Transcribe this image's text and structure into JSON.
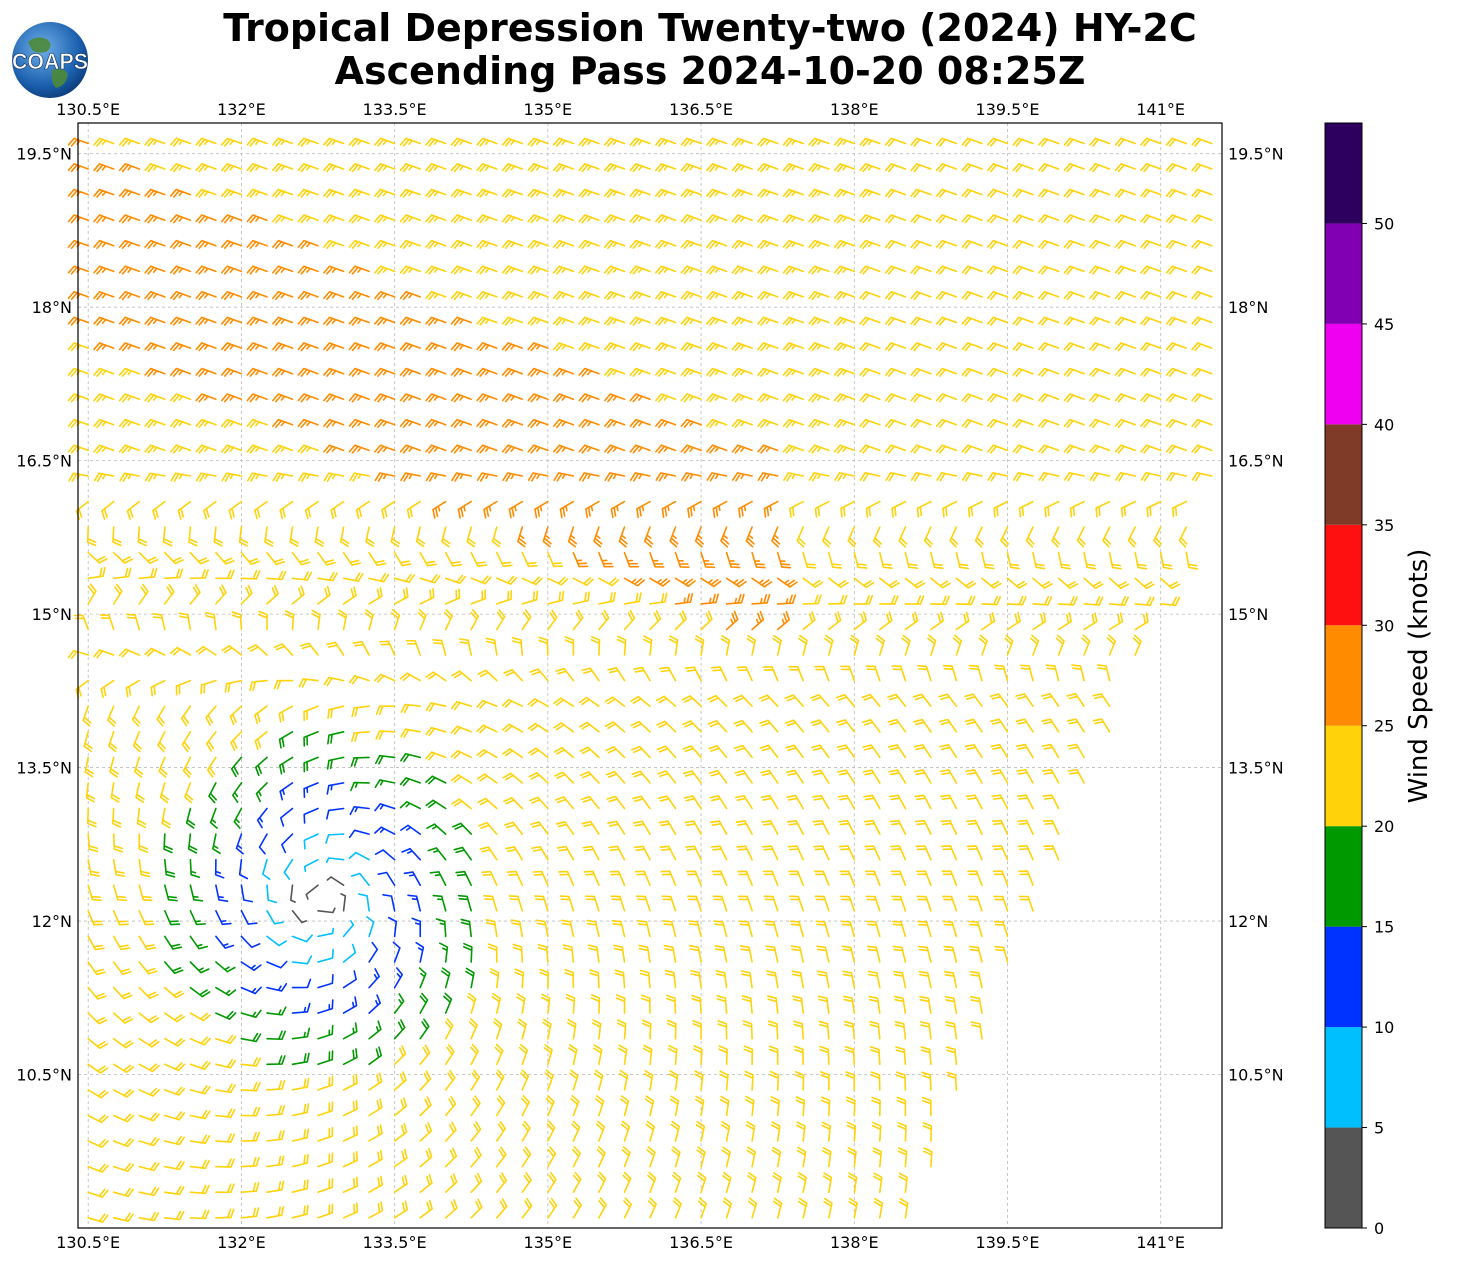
{
  "title": {
    "line1": "Tropical Depression Twenty-two (2024) HY-2C",
    "line2": "Ascending Pass 2024-10-20 08:25Z"
  },
  "logo": {
    "text": "COAPS",
    "icon": "globe-icon"
  },
  "map": {
    "lon_range": [
      130.4,
      141.6
    ],
    "lat_range": [
      9.0,
      19.8
    ],
    "lon_ticks": [
      "130.5°E",
      "132°E",
      "133.5°E",
      "135°E",
      "136.5°E",
      "138°E",
      "139.5°E",
      "141°E"
    ],
    "lat_ticks": [
      "10.5°N",
      "12°N",
      "13.5°N",
      "15°N",
      "16.5°N",
      "18°N",
      "19.5°N"
    ],
    "grid": true,
    "storm_center": {
      "lon": 132.8,
      "lat": 12.2
    },
    "swath_edge": {
      "lon_at_bottom": 138.5,
      "lat_at_right": 16.2
    }
  },
  "colorbar": {
    "label": "Wind Speed (knots)",
    "tick_labels": [
      "0",
      "5",
      "10",
      "15",
      "20",
      "25",
      "30",
      "35",
      "40",
      "45",
      "50"
    ],
    "bins": [
      {
        "min": 0,
        "max": 5,
        "color": "#555555"
      },
      {
        "min": 5,
        "max": 10,
        "color": "#00bfff"
      },
      {
        "min": 10,
        "max": 15,
        "color": "#0033ff"
      },
      {
        "min": 15,
        "max": 20,
        "color": "#009900"
      },
      {
        "min": 20,
        "max": 25,
        "color": "#ffd20a"
      },
      {
        "min": 25,
        "max": 30,
        "color": "#ff8c00"
      },
      {
        "min": 30,
        "max": 35,
        "color": "#ff1010"
      },
      {
        "min": 35,
        "max": 40,
        "color": "#7f3a28"
      },
      {
        "min": 40,
        "max": 45,
        "color": "#f000f0"
      },
      {
        "min": 45,
        "max": 50,
        "color": "#8200b4"
      },
      {
        "min": 50,
        "max": 55,
        "color": "#2d0060"
      }
    ]
  }
}
